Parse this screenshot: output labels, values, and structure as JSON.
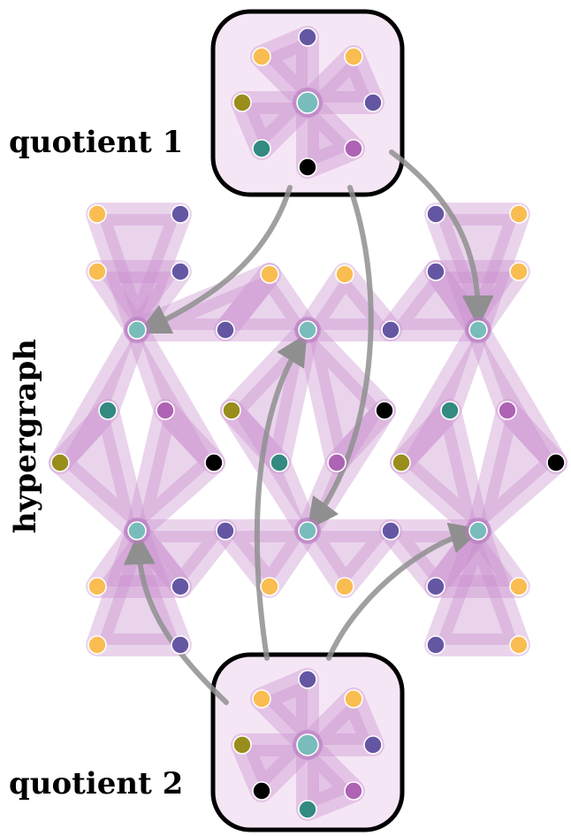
{
  "labels": {
    "quotient_1": "quotient 1",
    "quotient_2": "quotient 2",
    "hypergraph": "hypergraph"
  },
  "colors": {
    "hyperedge_fill": "#c98fce",
    "hyperedge_opacity": 0.38,
    "quotient_box_fill": "#f5e6f5",
    "quotient_box_stroke": "#000000",
    "arrow": "#8f8f8f",
    "node_border": "#ffffff",
    "center_ring": "#b57bc0",
    "node_types": {
      "yellow": "#f9bd51",
      "purple": "#6556a3",
      "olive": "#998d1c",
      "teal": "#338a81",
      "magenta": "#ae63b4",
      "black": "#000000",
      "cyan": "#79bcbc"
    }
  }
}
